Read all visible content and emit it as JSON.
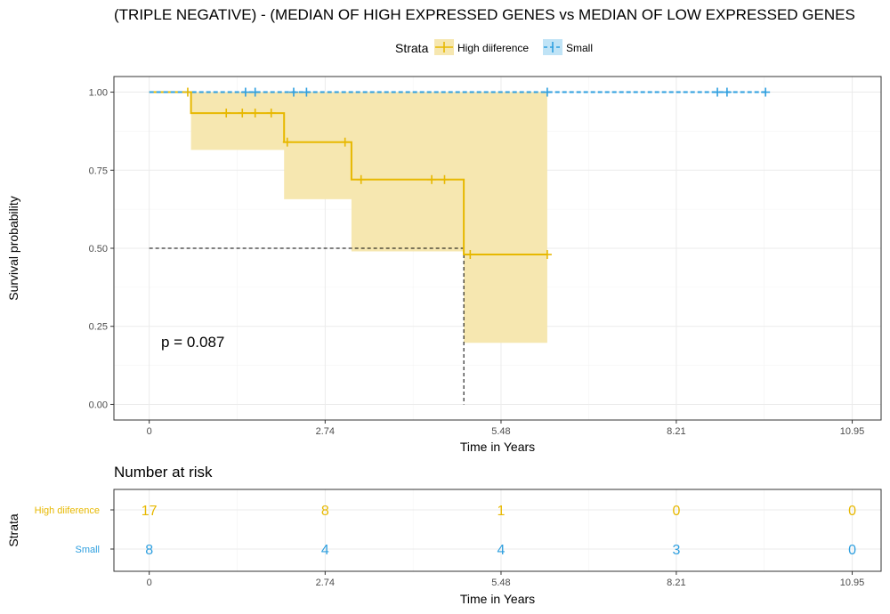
{
  "colors": {
    "high": "#E7B800",
    "small": "#2E9FDF",
    "ci_fill": "#f6e7b0",
    "median": "#000000"
  },
  "chart_data": [
    {
      "type": "line",
      "subtype": "kaplan-meier",
      "title": "(TRIPLE NEGATIVE) - (MEDIAN OF HIGH EXPRESSED GENES vs MEDIAN OF LOW EXPRESSED GENES",
      "xlabel": "Time in Years",
      "ylabel": "Survival probability",
      "xlim": [
        -0.55,
        11.4
      ],
      "ylim": [
        -0.05,
        1.05
      ],
      "xticks": [
        0,
        2.74,
        5.48,
        8.21,
        10.95
      ],
      "xtick_labels": [
        "0",
        "2.74",
        "5.48",
        "8.21",
        "10.95"
      ],
      "yticks": [
        0,
        0.25,
        0.5,
        0.75,
        1.0
      ],
      "ytick_labels": [
        "0.00",
        "0.25",
        "0.50",
        "0.75",
        "1.00"
      ],
      "grid": true,
      "legend": {
        "title": "Strata",
        "position": "top",
        "labels": [
          "High diiference",
          "Small"
        ]
      },
      "p_value_text": "p = 0.087",
      "median_survival": {
        "x": 4.9,
        "y": 0.5
      },
      "series": [
        {
          "name": "High diiference",
          "color_key": "high",
          "line_style": "solid",
          "steps": [
            [
              0,
              1.0
            ],
            [
              0.65,
              0.933
            ],
            [
              2.1,
              0.84
            ],
            [
              3.15,
              0.72
            ],
            [
              4.9,
              0.48
            ],
            [
              6.2,
              0.48
            ]
          ],
          "ci": [
            [
              0,
              1.0,
              1.0
            ],
            [
              0.65,
              0.815,
              1.0
            ],
            [
              2.1,
              0.657,
              1.0
            ],
            [
              3.15,
              0.49,
              1.0
            ],
            [
              4.9,
              0.197,
              1.0
            ],
            [
              6.2,
              0.197,
              1.0
            ]
          ],
          "censor": [
            [
              0.6,
              1.0
            ],
            [
              1.2,
              0.933
            ],
            [
              1.45,
              0.933
            ],
            [
              1.65,
              0.933
            ],
            [
              1.9,
              0.933
            ],
            [
              2.15,
              0.84
            ],
            [
              3.05,
              0.84
            ],
            [
              3.3,
              0.72
            ],
            [
              4.4,
              0.72
            ],
            [
              4.6,
              0.72
            ],
            [
              5.0,
              0.48
            ],
            [
              6.2,
              0.48
            ]
          ]
        },
        {
          "name": "Small",
          "color_key": "small",
          "line_style": "dashed",
          "steps": [
            [
              0,
              1.0
            ],
            [
              9.6,
              1.0
            ]
          ],
          "censor": [
            [
              1.5,
              1.0
            ],
            [
              1.65,
              1.0
            ],
            [
              2.25,
              1.0
            ],
            [
              2.45,
              1.0
            ],
            [
              6.2,
              1.0
            ],
            [
              8.85,
              1.0
            ],
            [
              9.0,
              1.0
            ],
            [
              9.6,
              1.0
            ]
          ]
        }
      ]
    },
    {
      "type": "table",
      "title": "Number at risk",
      "xlabel": "Time in Years",
      "ylabel": "Strata",
      "xticks": [
        0,
        2.74,
        5.48,
        8.21,
        10.95
      ],
      "xtick_labels": [
        "0",
        "2.74",
        "5.48",
        "8.21",
        "10.95"
      ],
      "rows": [
        {
          "name": "High diiference",
          "color_key": "high",
          "values": [
            "17",
            "8",
            "1",
            "0",
            "0"
          ]
        },
        {
          "name": "Small",
          "color_key": "small",
          "values": [
            "8",
            "4",
            "4",
            "3",
            "0"
          ]
        }
      ]
    }
  ]
}
